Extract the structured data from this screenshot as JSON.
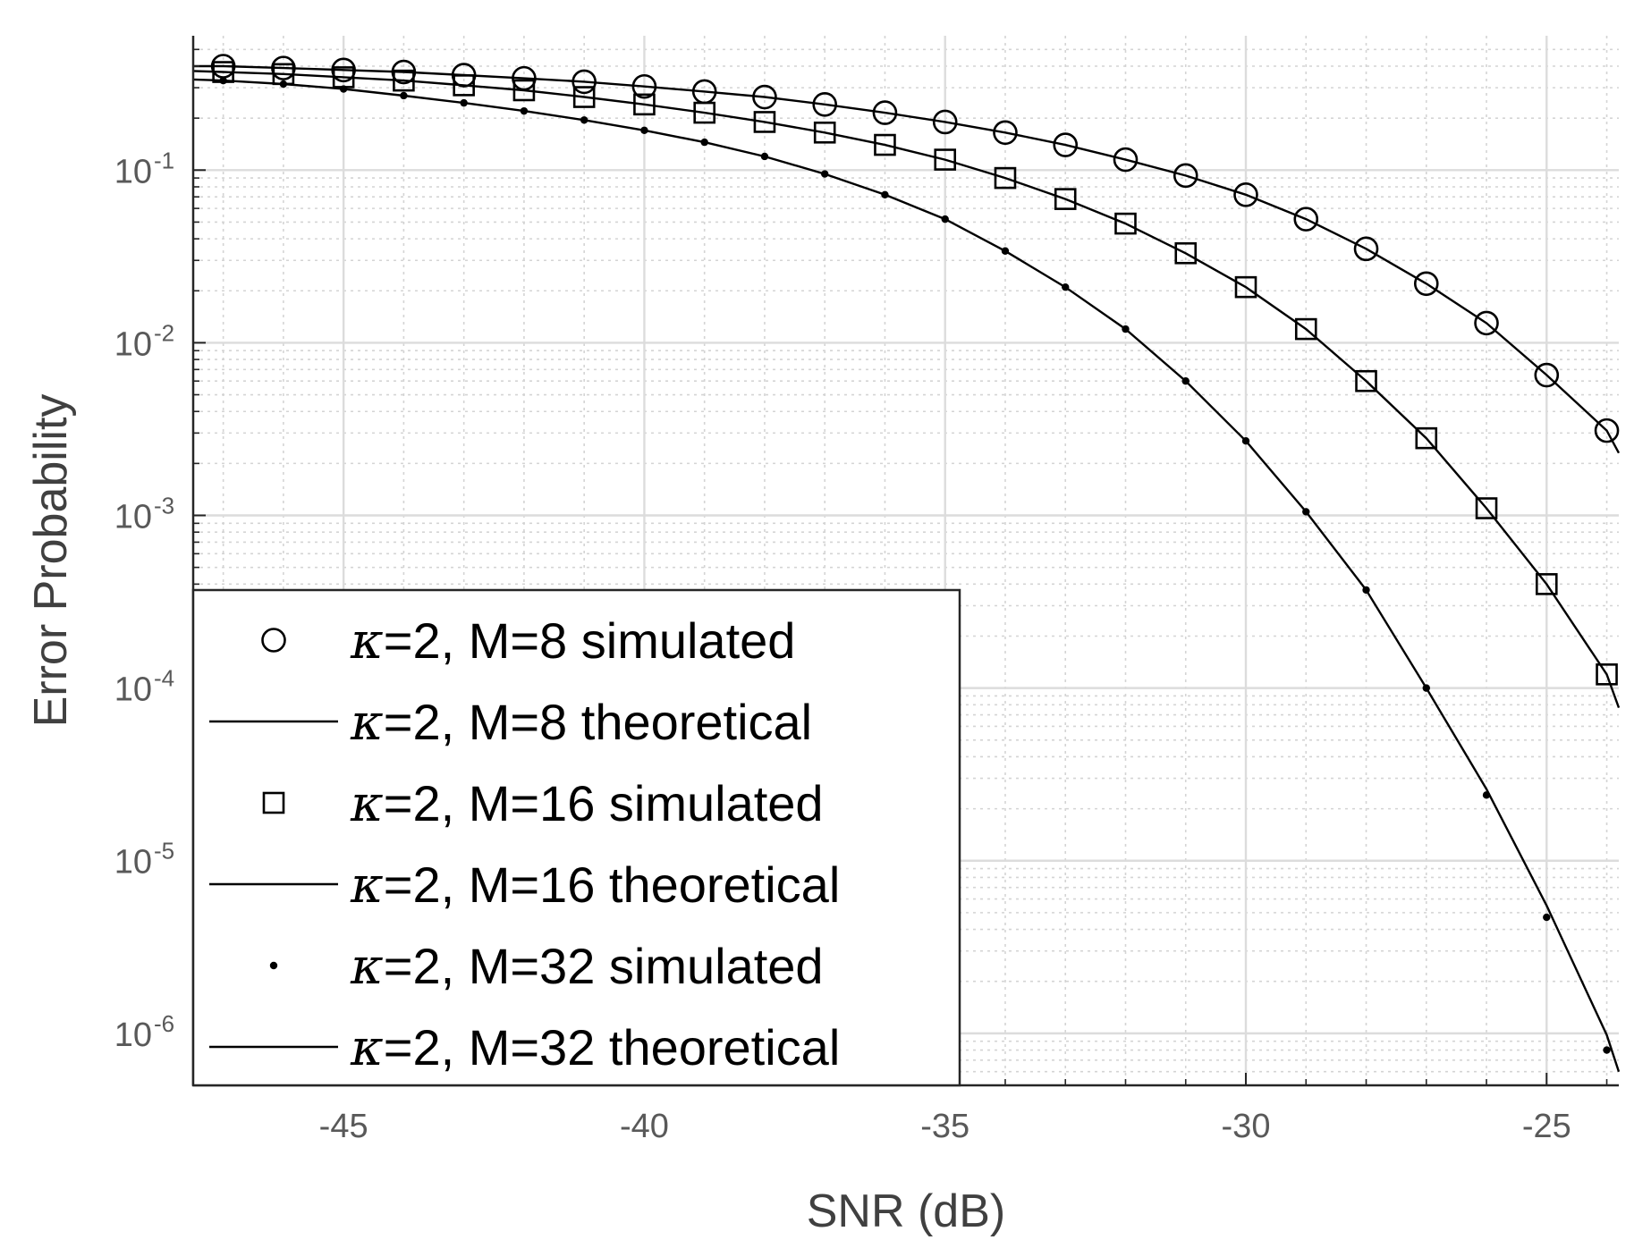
{
  "chart_data": {
    "type": "line",
    "xlabel": "SNR (dB)",
    "ylabel": "Error Probability",
    "xlim": [
      -47.5,
      -23.8
    ],
    "ylim": [
      5e-07,
      0.6
    ],
    "yscale": "log",
    "grid": true,
    "minor_grid": true,
    "legend_position": "bottom-left",
    "x_ticks": [
      -45,
      -40,
      -35,
      -30,
      -25
    ],
    "x_tick_labels": [
      "-45",
      "-40",
      "-35",
      "-30",
      "-25"
    ],
    "y_ticks": [
      {
        "value": 0.1,
        "base": "10",
        "exp": "-1"
      },
      {
        "value": 0.01,
        "base": "10",
        "exp": "-2"
      },
      {
        "value": 0.001,
        "base": "10",
        "exp": "-3"
      },
      {
        "value": 0.0001,
        "base": "10",
        "exp": "-4"
      },
      {
        "value": 1e-05,
        "base": "10",
        "exp": "-5"
      },
      {
        "value": 1e-06,
        "base": "10",
        "exp": "-6"
      }
    ],
    "series": [
      {
        "name": "κ=2, M=8 simulated",
        "kappa": "κ",
        "rest": "=2, M=8 simulated",
        "style": "marker",
        "marker": "circle",
        "x": [
          -47,
          -46,
          -45,
          -44,
          -43,
          -42,
          -41,
          -40,
          -39,
          -38,
          -37,
          -36,
          -35,
          -34,
          -33,
          -32,
          -31,
          -30,
          -29,
          -28,
          -27,
          -26,
          -25,
          -24
        ],
        "values": [
          0.4,
          0.39,
          0.38,
          0.37,
          0.355,
          0.34,
          0.325,
          0.305,
          0.285,
          0.265,
          0.24,
          0.215,
          0.19,
          0.165,
          0.14,
          0.115,
          0.093,
          0.072,
          0.052,
          0.035,
          0.022,
          0.013,
          0.0065,
          0.0031
        ]
      },
      {
        "name": "κ=2, M=8 theoretical",
        "kappa": "κ",
        "rest": "=2, M=8 theoretical",
        "style": "line",
        "x": [
          -47.5,
          -47,
          -46,
          -45,
          -44,
          -43,
          -42,
          -41,
          -40,
          -39,
          -38,
          -37,
          -36,
          -35,
          -34,
          -33,
          -32,
          -31,
          -30,
          -29,
          -28,
          -27,
          -26,
          -25,
          -24,
          -23.8
        ],
        "values": [
          0.4,
          0.4,
          0.39,
          0.38,
          0.37,
          0.355,
          0.34,
          0.325,
          0.305,
          0.285,
          0.265,
          0.24,
          0.215,
          0.19,
          0.165,
          0.14,
          0.115,
          0.093,
          0.072,
          0.052,
          0.035,
          0.022,
          0.013,
          0.0065,
          0.0031,
          0.0023
        ]
      },
      {
        "name": "κ=2, M=16 simulated",
        "kappa": "κ",
        "rest": "=2, M=16 simulated",
        "style": "marker",
        "marker": "square",
        "x": [
          -47,
          -46,
          -45,
          -44,
          -43,
          -42,
          -41,
          -40,
          -39,
          -38,
          -37,
          -36,
          -35,
          -34,
          -33,
          -32,
          -31,
          -30,
          -29,
          -28,
          -27,
          -26,
          -25,
          -24
        ],
        "values": [
          0.37,
          0.36,
          0.345,
          0.33,
          0.31,
          0.29,
          0.265,
          0.24,
          0.215,
          0.19,
          0.165,
          0.14,
          0.115,
          0.09,
          0.068,
          0.049,
          0.033,
          0.021,
          0.012,
          0.006,
          0.0028,
          0.0011,
          0.0004,
          0.00012
        ]
      },
      {
        "name": "κ=2, M=16 theoretical",
        "kappa": "κ",
        "rest": "=2, M=16 theoretical",
        "style": "line",
        "x": [
          -47.5,
          -47,
          -46,
          -45,
          -44,
          -43,
          -42,
          -41,
          -40,
          -39,
          -38,
          -37,
          -36,
          -35,
          -34,
          -33,
          -32,
          -31,
          -30,
          -29,
          -28,
          -27,
          -26,
          -25,
          -24,
          -23.8
        ],
        "values": [
          0.375,
          0.37,
          0.36,
          0.345,
          0.33,
          0.31,
          0.29,
          0.265,
          0.24,
          0.215,
          0.19,
          0.165,
          0.14,
          0.115,
          0.09,
          0.068,
          0.049,
          0.033,
          0.021,
          0.012,
          0.006,
          0.0028,
          0.0011,
          0.0004,
          0.00012,
          7.7e-05
        ]
      },
      {
        "name": "κ=2, M=32 simulated",
        "kappa": "κ",
        "rest": "=2, M=32 simulated",
        "style": "marker",
        "marker": "dot",
        "x": [
          -47,
          -46,
          -45,
          -44,
          -43,
          -42,
          -41,
          -40,
          -39,
          -38,
          -37,
          -36,
          -35,
          -34,
          -33,
          -32,
          -31,
          -30,
          -29,
          -28,
          -27,
          -26,
          -25,
          -24
        ],
        "values": [
          0.33,
          0.315,
          0.295,
          0.27,
          0.245,
          0.22,
          0.195,
          0.17,
          0.145,
          0.12,
          0.095,
          0.072,
          0.052,
          0.034,
          0.021,
          0.012,
          0.006,
          0.0027,
          0.00105,
          0.00037,
          0.0001,
          2.4e-05,
          4.7e-06,
          8e-07
        ]
      },
      {
        "name": "κ=2, M=32 theoretical",
        "kappa": "κ",
        "rest": "=2, M=32 theoretical",
        "style": "line",
        "x": [
          -47.5,
          -47,
          -46,
          -45,
          -44,
          -43,
          -42,
          -41,
          -40,
          -39,
          -38,
          -37,
          -36,
          -35,
          -34,
          -33,
          -32,
          -31,
          -30,
          -29,
          -28,
          -27,
          -26,
          -25,
          -24,
          -23.8
        ],
        "values": [
          0.335,
          0.33,
          0.315,
          0.295,
          0.27,
          0.245,
          0.22,
          0.195,
          0.17,
          0.145,
          0.12,
          0.095,
          0.072,
          0.052,
          0.034,
          0.021,
          0.012,
          0.006,
          0.0027,
          0.00105,
          0.00037,
          0.0001,
          2.6e-05,
          5.5e-06,
          9.8e-07,
          6e-07
        ]
      }
    ]
  }
}
